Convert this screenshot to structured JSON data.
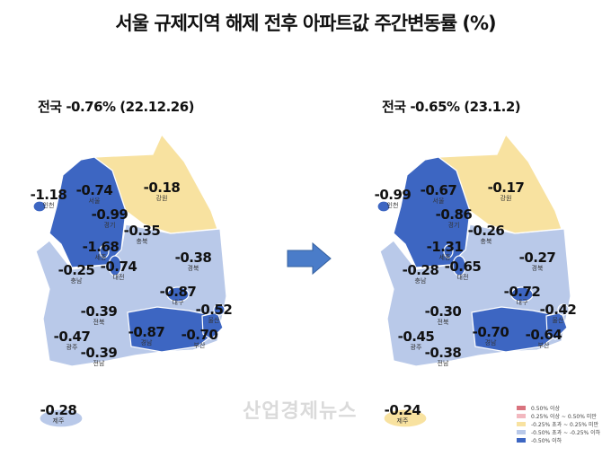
{
  "title": "서울 규제지역 해제 전후 아파트값 주간변동률 (%)",
  "colors": {
    "below_-0.50": "#3d66c2",
    "-0.50_to_-0.25": "#b9c9e9",
    "-0.25_to_0.25": "#f8e2a0",
    "0.25_to_0.50": "#f2b8bf",
    "above_0.50": "#d9737e"
  },
  "maps": [
    {
      "subtitle": "전국 -0.76% (22.12.26)",
      "regions": [
        {
          "name": "인천",
          "value": "-1.18",
          "cat": "below_-0.50"
        },
        {
          "name": "서울",
          "value": "-0.74",
          "cat": "below_-0.50"
        },
        {
          "name": "경기",
          "value": "-0.99",
          "cat": "below_-0.50"
        },
        {
          "name": "강원",
          "value": "-0.18",
          "cat": "-0.25_to_0.25"
        },
        {
          "name": "충북",
          "value": "-0.35",
          "cat": "-0.50_to_-0.25"
        },
        {
          "name": "세종",
          "value": "-1.68",
          "cat": "below_-0.50"
        },
        {
          "name": "대전",
          "value": "-0.74",
          "cat": "below_-0.50"
        },
        {
          "name": "충남",
          "value": "-0.25",
          "cat": "-0.50_to_-0.25"
        },
        {
          "name": "경북",
          "value": "-0.38",
          "cat": "-0.50_to_-0.25"
        },
        {
          "name": "대구",
          "value": "-0.87",
          "cat": "below_-0.50"
        },
        {
          "name": "울산",
          "value": "-0.52",
          "cat": "below_-0.50"
        },
        {
          "name": "전북",
          "value": "-0.39",
          "cat": "-0.50_to_-0.25"
        },
        {
          "name": "경남",
          "value": "-0.87",
          "cat": "below_-0.50"
        },
        {
          "name": "부산",
          "value": "-0.70",
          "cat": "below_-0.50"
        },
        {
          "name": "광주",
          "value": "-0.47",
          "cat": "-0.50_to_-0.25"
        },
        {
          "name": "전남",
          "value": "-0.39",
          "cat": "-0.50_to_-0.25"
        },
        {
          "name": "제주",
          "value": "-0.28",
          "cat": "-0.50_to_-0.25"
        }
      ]
    },
    {
      "subtitle": "전국 -0.65% (23.1.2)",
      "regions": [
        {
          "name": "인천",
          "value": "-0.99",
          "cat": "below_-0.50"
        },
        {
          "name": "서울",
          "value": "-0.67",
          "cat": "below_-0.50"
        },
        {
          "name": "경기",
          "value": "-0.86",
          "cat": "below_-0.50"
        },
        {
          "name": "강원",
          "value": "-0.17",
          "cat": "-0.25_to_0.25"
        },
        {
          "name": "충북",
          "value": "-0.26",
          "cat": "-0.50_to_-0.25"
        },
        {
          "name": "세종",
          "value": "-1.31",
          "cat": "below_-0.50"
        },
        {
          "name": "대전",
          "value": "-0.65",
          "cat": "below_-0.50"
        },
        {
          "name": "충남",
          "value": "-0.28",
          "cat": "-0.50_to_-0.25"
        },
        {
          "name": "경북",
          "value": "-0.27",
          "cat": "-0.50_to_-0.25"
        },
        {
          "name": "대구",
          "value": "-0.72",
          "cat": "below_-0.50"
        },
        {
          "name": "울산",
          "value": "-0.42",
          "cat": "-0.50_to_-0.25"
        },
        {
          "name": "전북",
          "value": "-0.30",
          "cat": "-0.50_to_-0.25"
        },
        {
          "name": "경남",
          "value": "-0.70",
          "cat": "below_-0.50"
        },
        {
          "name": "부산",
          "value": "-0.64",
          "cat": "below_-0.50"
        },
        {
          "name": "광주",
          "value": "-0.45",
          "cat": "-0.50_to_-0.25"
        },
        {
          "name": "전남",
          "value": "-0.38",
          "cat": "-0.50_to_-0.25"
        },
        {
          "name": "제주",
          "value": "-0.24",
          "cat": "-0.25_to_0.25"
        }
      ]
    }
  ],
  "legend": [
    {
      "label": "0.50% 이상",
      "cat": "above_0.50"
    },
    {
      "label": "0.25% 이상 ~ 0.50% 미만",
      "cat": "0.25_to_0.50"
    },
    {
      "label": "-0.25% 초과 ~ 0.25% 미만",
      "cat": "-0.25_to_0.25"
    },
    {
      "label": "-0.50% 초과 ~ -0.25% 이하",
      "cat": "-0.50_to_-0.25"
    },
    {
      "label": "-0.50% 이하",
      "cat": "below_-0.50"
    }
  ],
  "watermark": "산업경제뉴스",
  "arrow_icon": "right-arrow-icon"
}
